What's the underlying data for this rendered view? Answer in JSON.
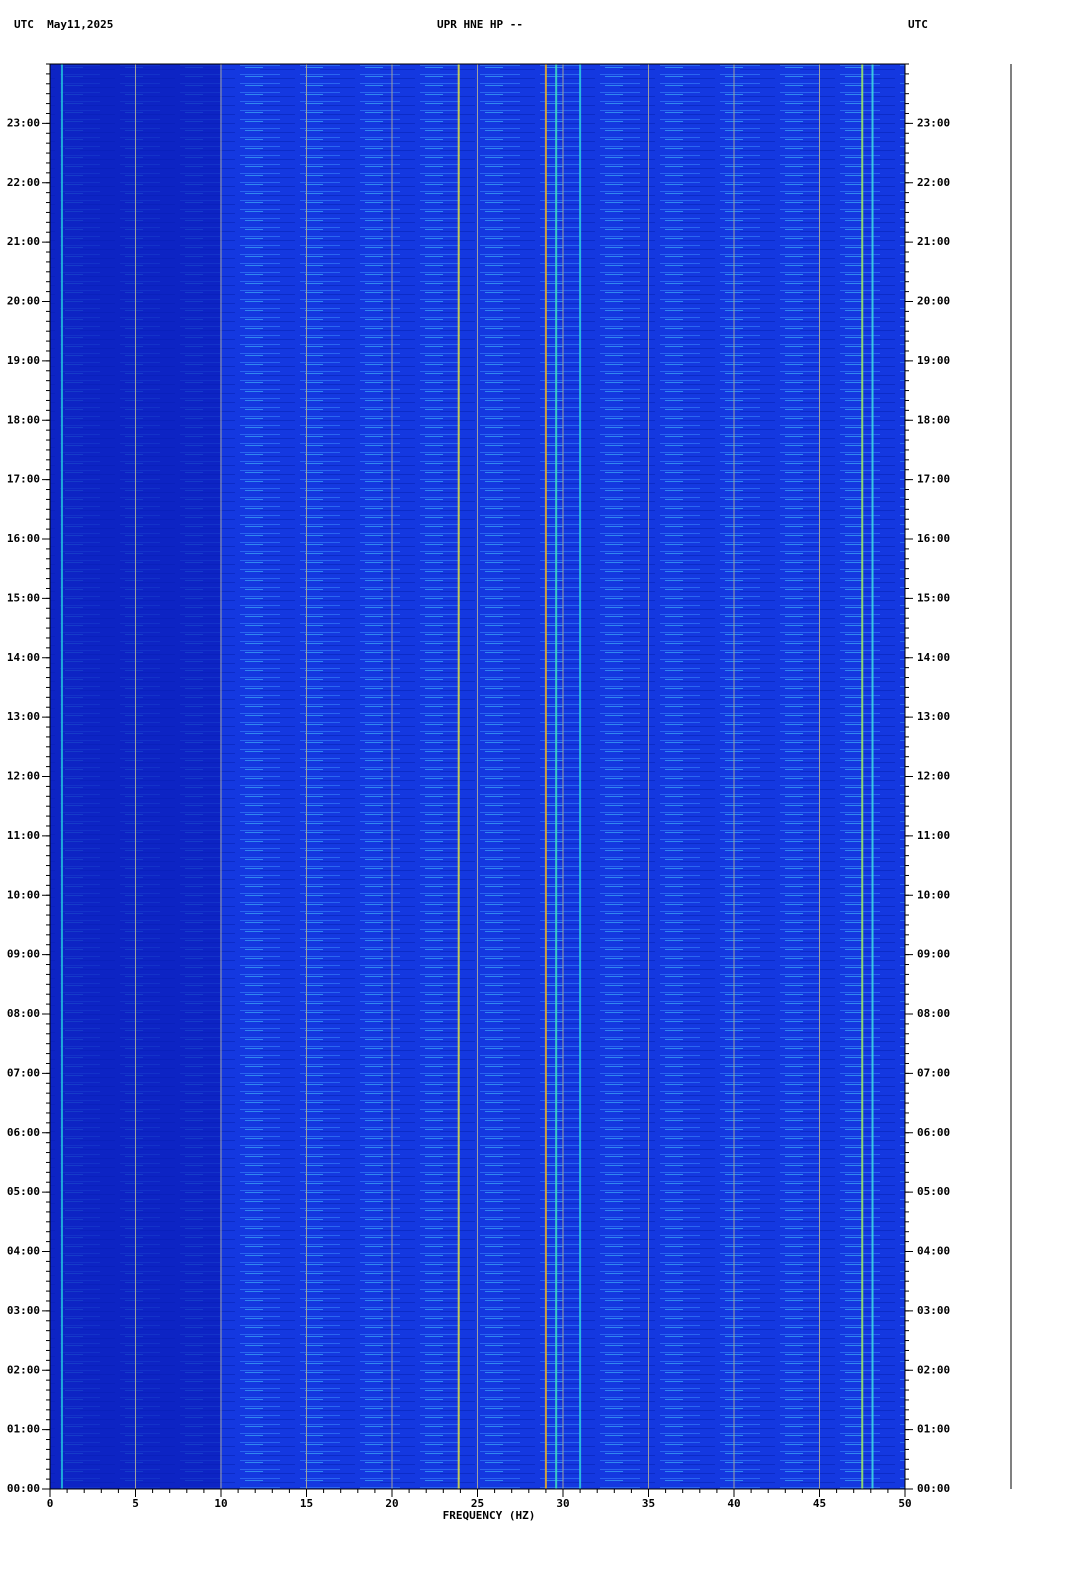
{
  "chart_data": {
    "type": "spectrogram",
    "title": "UPR HNE HP --",
    "date_label": "UTC  May11,2025",
    "right_label": "UTC",
    "x_label": "FREQUENCY (HZ)",
    "xlim": [
      0,
      50
    ],
    "xticks": [
      0,
      5,
      10,
      15,
      20,
      25,
      30,
      35,
      40,
      45,
      50
    ],
    "ylim": [
      0,
      24
    ],
    "yticks": [
      {
        "value": 0,
        "label": "00:00"
      },
      {
        "value": 1,
        "label": "01:00"
      },
      {
        "value": 2,
        "label": "02:00"
      },
      {
        "value": 3,
        "label": "03:00"
      },
      {
        "value": 4,
        "label": "04:00"
      },
      {
        "value": 5,
        "label": "05:00"
      },
      {
        "value": 6,
        "label": "06:00"
      },
      {
        "value": 7,
        "label": "07:00"
      },
      {
        "value": 8,
        "label": "08:00"
      },
      {
        "value": 9,
        "label": "09:00"
      },
      {
        "value": 10,
        "label": "10:00"
      },
      {
        "value": 11,
        "label": "11:00"
      },
      {
        "value": 12,
        "label": "12:00"
      },
      {
        "value": 13,
        "label": "13:00"
      },
      {
        "value": 14,
        "label": "14:00"
      },
      {
        "value": 15,
        "label": "15:00"
      },
      {
        "value": 16,
        "label": "16:00"
      },
      {
        "value": 17,
        "label": "17:00"
      },
      {
        "value": 18,
        "label": "18:00"
      },
      {
        "value": 19,
        "label": "19:00"
      },
      {
        "value": 20,
        "label": "20:00"
      },
      {
        "value": 21,
        "label": "21:00"
      },
      {
        "value": 22,
        "label": "22:00"
      },
      {
        "value": 23,
        "label": "23:00"
      }
    ],
    "grid": true,
    "spectral_lines": [
      {
        "x": 0.7,
        "color": "#20c0e0"
      },
      {
        "x": 23.9,
        "color": "#e0e040"
      },
      {
        "x": 29,
        "color": "#f0b020"
      },
      {
        "x": 29.6,
        "color": "#40e0c0"
      },
      {
        "x": 31,
        "color": "#30d0e0"
      },
      {
        "x": 47.5,
        "color": "#a0f060"
      },
      {
        "x": 48.1,
        "color": "#40e0e0"
      }
    ]
  }
}
